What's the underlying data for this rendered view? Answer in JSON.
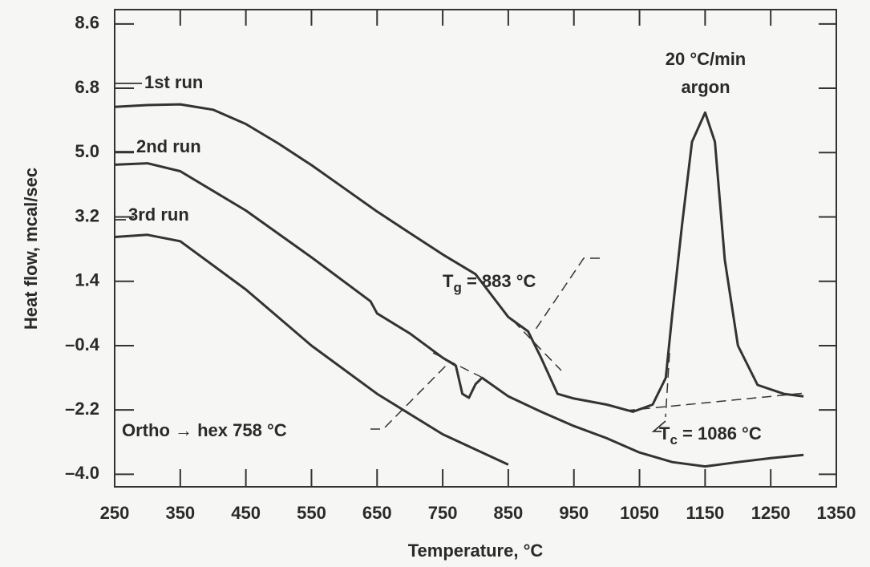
{
  "chart_data": {
    "type": "line",
    "x_label": "Temperature, °C",
    "y_label": "Heat flow, mcal/sec",
    "xlim": [
      250,
      1350
    ],
    "xticks": [
      250,
      350,
      450,
      550,
      650,
      750,
      850,
      950,
      1050,
      1150,
      1250,
      1350
    ],
    "ylim": [
      -4.35,
      9.0
    ],
    "yticks": [
      {
        "value": -4.0,
        "label": "–4.0"
      },
      {
        "value": -2.2,
        "label": "–2.2"
      },
      {
        "value": -0.4,
        "label": "–0.4"
      },
      1.4,
      3.2,
      {
        "value": 5.0,
        "label": "5.0"
      },
      6.8,
      8.6
    ],
    "grid": false,
    "series": [
      {
        "name": "1st run",
        "color": "#333333",
        "x": [
          250,
          300,
          350,
          400,
          450,
          500,
          550,
          600,
          650,
          700,
          750,
          800,
          850,
          880,
          900,
          925,
          950,
          1000,
          1040,
          1070,
          1090,
          1100,
          1115,
          1130,
          1150,
          1165,
          1180,
          1200,
          1230,
          1270,
          1300
        ],
        "values": [
          6.28,
          6.33,
          6.35,
          6.2,
          5.8,
          5.25,
          4.65,
          4.0,
          3.35,
          2.75,
          2.15,
          1.6,
          0.4,
          0.0,
          -0.74,
          -1.75,
          -1.88,
          -2.05,
          -2.25,
          -2.05,
          -1.3,
          0.5,
          3.0,
          5.3,
          6.12,
          5.3,
          2.0,
          -0.4,
          -1.5,
          -1.75,
          -1.82
        ]
      },
      {
        "name": "2nd run",
        "color": "#333333",
        "x": [
          250,
          300,
          350,
          450,
          550,
          640,
          650,
          700,
          750,
          770,
          780,
          790,
          800,
          810,
          850,
          900,
          950,
          1000,
          1050,
          1100,
          1150,
          1200,
          1250,
          1300
        ],
        "values": [
          4.66,
          4.7,
          4.48,
          3.38,
          2.07,
          0.84,
          0.5,
          -0.06,
          -0.74,
          -0.96,
          -1.75,
          -1.86,
          -1.48,
          -1.3,
          -1.82,
          -2.25,
          -2.65,
          -2.99,
          -3.39,
          -3.66,
          -3.78,
          -3.66,
          -3.55,
          -3.46
        ]
      },
      {
        "name": "3rd run",
        "color": "#333333",
        "x": [
          250,
          300,
          350,
          450,
          550,
          650,
          750,
          850
        ],
        "values": [
          2.64,
          2.7,
          2.52,
          1.17,
          -0.4,
          -1.75,
          -2.88,
          -3.73
        ]
      }
    ],
    "annotations": {
      "rate": "20 °C/min",
      "atmosphere": "argon",
      "tg": {
        "symbol": "T",
        "sub": "g",
        "text": " = 883 °C"
      },
      "tc": {
        "symbol": "T",
        "sub": "c",
        "text": " = 1086 °C"
      },
      "transition": "Ortho → hex 758 °C"
    }
  }
}
